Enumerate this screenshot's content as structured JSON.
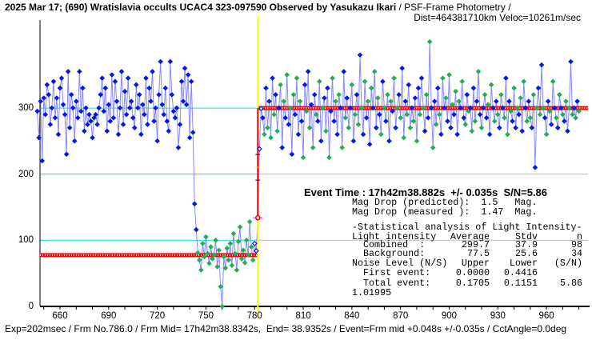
{
  "header": {
    "title_bold": "2025 Mar 17; (690) Wratislavia occults UCAC4 323-097590 Observed by Yasukazu Ikari",
    "title_rest": " / PSF-Frame Photometry /",
    "dist_line": "Dist=464381710km Veloc=10261m/sec"
  },
  "event": {
    "line": "Event Time : 17h42m38.882s  +/- 0.035s  S/N=5.86",
    "mag_pred": "Mag Drop (predicted):  1.5   Mag.",
    "mag_meas": "Mag Drop (measured ):  1.47  Mag."
  },
  "stats": {
    "heading": "-Statistical analysis of Light Intensity-",
    "header_row": [
      "Light intensity",
      "Average",
      "Stdv",
      "n"
    ],
    "combined": [
      "  Combined  :",
      "299.7",
      "37.9",
      "98"
    ],
    "background": [
      "  Background:",
      "77.5",
      "25.6",
      "34"
    ],
    "noise_row": [
      "Noise Level (N/S)",
      "Upper",
      "Lower",
      "(S/N)"
    ],
    "first_event": [
      "  First event:",
      "0.0000",
      "0.4416",
      ""
    ],
    "total_event": [
      "  Total event:",
      "0.1705",
      "0.1151",
      "5.86"
    ],
    "extra": "1.01995"
  },
  "footer": "Exp=202msec / Frm No.786.0 / Frm Mid= 17h42m38.8342s,  End= 38.9352s / Event=Frm mid +0.048s +/-0.035s / CctAngle=0.0deg",
  "chart_data": {
    "type": "scatter",
    "title": "2025 Mar 17; (690) Wratislavia occults UCAC4 323-097590",
    "xlim": [
      647,
      985
    ],
    "ylim": [
      0,
      360
    ],
    "x_ticks": [
      "660",
      "690",
      "720",
      "750",
      "780",
      "810",
      "840",
      "870",
      "900",
      "930",
      "960"
    ],
    "y_ticks": [
      "0",
      "100",
      "200",
      "300"
    ],
    "levels": {
      "combined": 299.7,
      "background": 77.5,
      "event_frame": 782
    },
    "colors": {
      "blue": "#0018e8",
      "green": "#20b050",
      "line": "#8888ff",
      "red": "#ff0000",
      "cyan": "#00e0f0",
      "yellow": "#ffff00"
    },
    "pre_start": 646,
    "pre": [
      295,
      255,
      310,
      220,
      315,
      290,
      335,
      320,
      275,
      300,
      340,
      285,
      315,
      260,
      330,
      345,
      305,
      290,
      230,
      355,
      270,
      320,
      300,
      250,
      310,
      285,
      355,
      295,
      330,
      265,
      300,
      275,
      290,
      280,
      255,
      285,
      290,
      275,
      300,
      320,
      345,
      295,
      330,
      265,
      305,
      280,
      350,
      285,
      340,
      310,
      260,
      300,
      355,
      275,
      325,
      290,
      345,
      300,
      310,
      285,
      270,
      335,
      300,
      320,
      260,
      305,
      290,
      345,
      275,
      330,
      310,
      355,
      280,
      300,
      250,
      320,
      370,
      305,
      290,
      330,
      280,
      265,
      370,
      320,
      295,
      285,
      300,
      240,
      275,
      340,
      310,
      360,
      305,
      350,
      255,
      340,
      263,
      155,
      116
    ],
    "background": [
      81,
      70,
      55,
      95,
      75,
      105,
      80,
      65,
      90,
      72,
      78,
      100,
      60,
      85,
      30,
      0,
      75,
      58,
      88,
      70,
      95,
      62,
      110,
      80,
      55,
      98,
      120,
      72,
      85,
      66,
      100,
      78,
      128,
      90,
      70,
      95,
      84
    ],
    "transition": 134,
    "post": [
      238,
      299,
      285,
      260,
      330,
      270,
      310,
      255,
      345,
      290,
      320,
      265,
      300,
      335,
      240,
      310,
      285,
      350,
      275,
      300,
      230,
      320,
      290,
      345,
      260,
      310,
      280,
      225,
      335,
      295,
      355,
      270,
      305,
      240,
      320,
      290,
      280,
      340,
      250,
      300,
      315,
      265,
      330,
      225,
      295,
      345,
      280,
      310,
      260,
      320,
      300,
      240,
      355,
      285,
      315,
      270,
      300,
      335,
      250,
      290,
      320,
      275,
      380,
      300,
      260,
      340,
      285,
      310,
      245,
      330,
      300,
      355,
      270,
      315,
      290,
      260,
      340,
      300,
      280,
      320,
      250,
      310,
      295,
      345,
      270,
      300,
      320,
      285,
      360,
      255,
      310,
      290,
      335,
      270,
      300,
      280,
      315,
      250,
      330,
      290,
      345,
      300,
      265,
      320,
      285,
      400,
      300,
      240,
      310,
      275,
      330,
      290,
      260,
      345,
      300,
      315,
      280,
      350,
      270,
      305,
      290,
      325,
      260,
      310,
      300,
      340,
      285,
      275,
      320,
      295,
      300,
      265,
      330,
      280,
      310,
      355,
      290,
      270,
      300,
      320,
      285,
      305,
      260,
      335,
      300,
      280,
      310,
      290,
      270,
      320,
      300,
      285,
      345,
      260,
      310,
      295,
      280,
      330,
      270,
      300,
      290,
      315,
      265,
      340,
      300,
      280,
      310,
      285,
      270,
      320,
      210,
      300,
      330,
      290,
      365,
      300,
      285,
      260,
      310,
      295,
      275,
      340,
      300,
      285,
      270,
      320,
      300,
      290,
      280,
      310,
      265,
      300,
      370,
      290,
      300,
      285,
      310,
      295
    ]
  }
}
